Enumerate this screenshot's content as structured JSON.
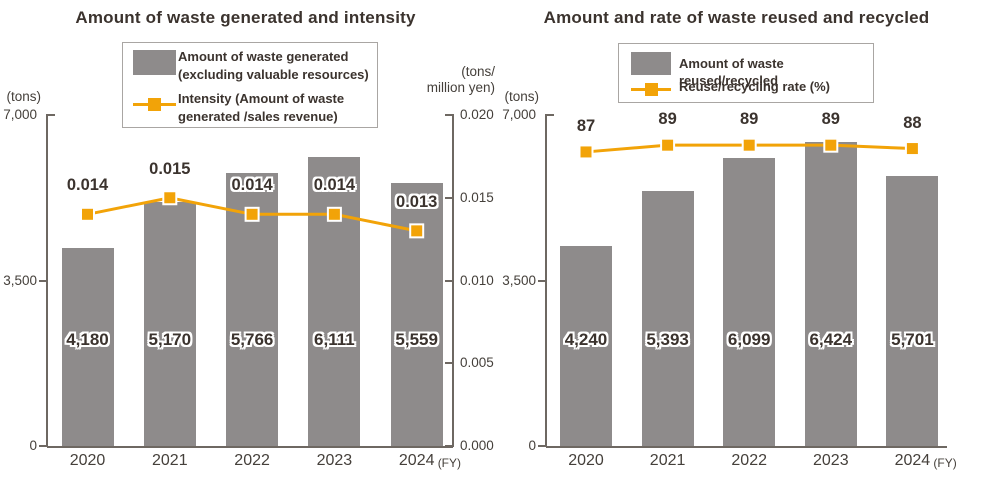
{
  "colors": {
    "bar": "#8E8B8B",
    "line": "#F2A308",
    "marker_border": "#FFFFFF",
    "axis": "#6E6862",
    "text_dark": "#3B332E",
    "tick_text": "#45403B",
    "legend_border": "#A9A6A3",
    "background": "#FFFFFF"
  },
  "charts": [
    {
      "title": "Amount of waste generated and intensity",
      "y1_unit": "(tons)",
      "y2_unit": "(tons/\nmillion yen)",
      "legend": {
        "bar_label": "Amount of waste generated\n(excluding valuable resources)",
        "line_label": "Intensity (Amount of waste\ngenerated /sales revenue)"
      },
      "chart_data": {
        "type": "bar+line",
        "categories": [
          "2020",
          "2021",
          "2022",
          "2023",
          "2024"
        ],
        "x_suffix": "(FY)",
        "y1": {
          "label": "(tons)",
          "lim": [
            0,
            7000
          ],
          "ticks": [
            {
              "value": 7000,
              "label": "7,000"
            },
            {
              "value": 3500,
              "label": "3,500"
            },
            {
              "value": 0,
              "label": "0"
            }
          ]
        },
        "y2": {
          "label": "(tons/million yen)",
          "lim": [
            0,
            0.02
          ],
          "visible": true,
          "ticks": [
            {
              "value": 0.02,
              "label": "0.020"
            },
            {
              "value": 0.015,
              "label": "0.015"
            },
            {
              "value": 0.01,
              "label": "0.010"
            },
            {
              "value": 0.005,
              "label": "0.005"
            },
            {
              "value": 0,
              "label": "0.000"
            }
          ]
        },
        "series": [
          {
            "name": "Amount of waste generated (excluding valuable resources)",
            "type": "bar",
            "axis": "y1",
            "values": [
              4180,
              5170,
              5766,
              6111,
              5559
            ],
            "labels": [
              "4,180",
              "5,170",
              "5,766",
              "6,111",
              "5,559"
            ]
          },
          {
            "name": "Intensity (Amount of waste generated /sales revenue)",
            "type": "line",
            "axis": "y2",
            "values": [
              0.014,
              0.015,
              0.014,
              0.014,
              0.013
            ],
            "labels": [
              "0.014",
              "0.015",
              "0.014",
              "0.014",
              "0.013"
            ]
          }
        ]
      }
    },
    {
      "title": "Amount and rate of waste reused and recycled",
      "y1_unit": "(tons)",
      "legend": {
        "bar_label": "Amount of waste reused/recycled",
        "line_label": "Reuse/recycling rate (%)"
      },
      "chart_data": {
        "type": "bar+line",
        "categories": [
          "2020",
          "2021",
          "2022",
          "2023",
          "2024"
        ],
        "x_suffix": "(FY)",
        "y1": {
          "label": "(tons)",
          "lim": [
            0,
            7000
          ],
          "ticks": [
            {
              "value": 7000,
              "label": "7,000"
            },
            {
              "value": 3500,
              "label": "3,500"
            },
            {
              "value": 0,
              "label": "0"
            }
          ]
        },
        "y2": {
          "label": "Reuse/recycling rate (%)",
          "lim": [
            0,
            100
          ],
          "visible": false,
          "ticks": []
        },
        "series": [
          {
            "name": "Amount of waste reused/recycled",
            "type": "bar",
            "axis": "y1",
            "values": [
              4240,
              5393,
              6099,
              6424,
              5701
            ],
            "labels": [
              "4,240",
              "5,393",
              "6,099",
              "6,424",
              "5,701"
            ]
          },
          {
            "name": "Reuse/recycling rate (%)",
            "type": "line",
            "axis": "y2",
            "values": [
              87,
              89,
              89,
              89,
              88
            ],
            "labels": [
              "87",
              "89",
              "89",
              "89",
              "88"
            ]
          }
        ]
      }
    }
  ]
}
